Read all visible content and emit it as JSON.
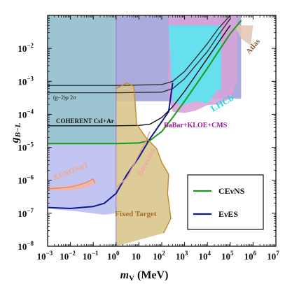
{
  "chart_data": {
    "type": "line",
    "xlabel": "m",
    "xlabel_sub": "V",
    "xlabel_unit": " (MeV)",
    "ylabel": "g",
    "ylabel_sub": "B−L",
    "x_scale": "log",
    "y_scale": "log",
    "xlim": [
      0.001,
      10000000
    ],
    "ylim": [
      1e-08,
      0.1
    ],
    "x_ticks": [
      {
        "value": 0.001,
        "label": "10",
        "exp": "−3"
      },
      {
        "value": 0.01,
        "label": "10",
        "exp": "−2"
      },
      {
        "value": 0.1,
        "label": "10",
        "exp": "−1"
      },
      {
        "value": 1,
        "label": "10",
        "exp": "0"
      },
      {
        "value": 10,
        "label": "10",
        "exp": ""
      },
      {
        "value": 100,
        "label": "10",
        "exp": "2"
      },
      {
        "value": 1000,
        "label": "10",
        "exp": "3"
      },
      {
        "value": 10000,
        "label": "10",
        "exp": "4"
      },
      {
        "value": 100000,
        "label": "10",
        "exp": "5"
      },
      {
        "value": 1000000,
        "label": "10",
        "exp": "6"
      },
      {
        "value": 10000000,
        "label": "10",
        "exp": "7"
      }
    ],
    "y_ticks": [
      {
        "value": 0.01,
        "label": "10",
        "exp": "−2"
      },
      {
        "value": 0.001,
        "label": "10",
        "exp": "−3"
      },
      {
        "value": 0.0001,
        "label": "10",
        "exp": "−4"
      },
      {
        "value": 1e-05,
        "label": "10",
        "exp": "−5"
      },
      {
        "value": 1e-06,
        "label": "10",
        "exp": "−6"
      },
      {
        "value": 1e-07,
        "label": "10",
        "exp": "−7"
      },
      {
        "value": 1e-08,
        "label": "10",
        "exp": "−8"
      }
    ],
    "regions": [
      {
        "name": "beam-dump",
        "color": "#8fbccc",
        "points": [
          [
            0.001,
            0.1
          ],
          [
            1,
            0.1
          ],
          [
            1,
            1.2e-05
          ],
          [
            0.1,
            1.2e-05
          ],
          [
            0.01,
            1.2e-05
          ],
          [
            0.001,
            1.2e-05
          ]
        ]
      },
      {
        "name": "low-mass",
        "color": "#b9bcf0",
        "points": [
          [
            0.001,
            1.2e-05
          ],
          [
            1,
            1.2e-05
          ],
          [
            1,
            1e-07
          ],
          [
            0.3,
            9e-08
          ],
          [
            0.03,
            1.1e-07
          ],
          [
            0.001,
            1.4e-07
          ]
        ]
      },
      {
        "name": "collider-band",
        "color": "#9f9ed8",
        "points": [
          [
            1,
            0.1
          ],
          [
            300000,
            0.1
          ],
          [
            300000,
            0.0003
          ],
          [
            1000,
            0.0003
          ],
          [
            200,
            0.00025
          ],
          [
            1,
            0.00025
          ]
        ]
      },
      {
        "name": "fixed-target",
        "color": "#d8c48a",
        "points": [
          [
            1,
            0.0006
          ],
          [
            3,
            0.0009
          ],
          [
            6,
            0.0007
          ],
          [
            8,
            5e-05
          ],
          [
            20,
            2e-05
          ],
          [
            60,
            9e-06
          ],
          [
            100,
            3.5e-06
          ],
          [
            200,
            1.5e-06
          ],
          [
            180,
            4e-07
          ],
          [
            250,
            7e-08
          ],
          [
            120,
            2.5e-08
          ],
          [
            1,
            1e-08
          ]
        ]
      },
      {
        "name": "babar-kloe-cms",
        "color": "#d7a3d8",
        "points": [
          [
            200,
            0.0003
          ],
          [
            300,
            0.00012
          ],
          [
            1000,
            0.00011
          ],
          [
            3000,
            0.00013
          ],
          [
            10000,
            0.00019
          ],
          [
            30000,
            0.0002
          ],
          [
            100000,
            0.0003
          ],
          [
            200000,
            0.001
          ],
          [
            200000,
            0.1
          ],
          [
            200,
            0.1
          ]
        ]
      },
      {
        "name": "lhcb",
        "color": "#5ae6f0",
        "points": [
          [
            200,
            0.05
          ],
          [
            300,
            0.00025
          ],
          [
            600,
            0.0002
          ],
          [
            1000,
            0.0002
          ],
          [
            3000,
            0.00025
          ],
          [
            10000,
            0.00022
          ],
          [
            15000,
            0.0003
          ],
          [
            30000,
            0.0006
          ],
          [
            40000,
            0.0005
          ],
          [
            40000,
            0.05
          ]
        ]
      },
      {
        "name": "atlas",
        "color": "#e2c6b4",
        "points": [
          [
            150000,
            0.05
          ],
          [
            300000,
            0.02
          ],
          [
            800000,
            0.012
          ],
          [
            1000000,
            0.05
          ]
        ]
      },
      {
        "name": "xenonnt",
        "color": "#f6b59b",
        "points": [
          [
            0.001,
            6e-07
          ],
          [
            0.01,
            7e-07
          ],
          [
            0.05,
            9e-07
          ],
          [
            0.1,
            1.1e-06
          ],
          [
            0.12,
            8e-07
          ],
          [
            0.05,
            6e-07
          ],
          [
            0.01,
            5e-07
          ],
          [
            0.001,
            5e-07
          ]
        ]
      }
    ],
    "curves": [
      {
        "name": "CEνNS",
        "color": "#1a9a1a",
        "points": [
          [
            0.001,
            1.3e-05
          ],
          [
            1,
            1.3e-05
          ],
          [
            10,
            1.35e-05
          ],
          [
            30,
            1.6e-05
          ],
          [
            100,
            3e-05
          ],
          [
            300,
            8e-05
          ],
          [
            1000,
            0.00025
          ],
          [
            3000,
            0.00075
          ],
          [
            10000,
            0.0025
          ],
          [
            30000,
            0.008
          ],
          [
            100000,
            0.028
          ],
          [
            300000,
            0.07
          ]
        ]
      },
      {
        "name": "EνES",
        "color": "#101890",
        "points": [
          [
            0.001,
            1.5e-07
          ],
          [
            0.01,
            1.4e-07
          ],
          [
            0.1,
            1.6e-07
          ],
          [
            0.3,
            2e-07
          ],
          [
            1,
            4e-07
          ],
          [
            3,
            1.5e-06
          ],
          [
            10,
            5e-06
          ],
          [
            30,
            1.8e-05
          ],
          [
            100,
            6e-05
          ],
          [
            200,
            0.00012
          ],
          [
            300,
            0.0009
          ]
        ]
      },
      {
        "name": "(g−2)μ 2σ",
        "color": "#2a2a2a",
        "points": [
          [
            0.001,
            0.00045
          ],
          [
            1,
            0.00045
          ],
          [
            100,
            0.00047
          ],
          [
            300,
            0.0006
          ],
          [
            1000,
            0.0012
          ],
          [
            3000,
            0.003
          ],
          [
            10000,
            0.008
          ],
          [
            30000,
            0.025
          ],
          [
            100000,
            0.08
          ]
        ]
      },
      {
        "name": "(g−2)μ 2σ upper",
        "color": "#2a2a2a",
        "points": [
          [
            0.001,
            0.00075
          ],
          [
            1,
            0.00075
          ],
          [
            100,
            0.0008
          ],
          [
            300,
            0.001
          ],
          [
            1000,
            0.002
          ],
          [
            3000,
            0.005
          ],
          [
            10000,
            0.014
          ],
          [
            30000,
            0.04
          ],
          [
            100000,
            0.1
          ]
        ]
      },
      {
        "name": "COHERENT CsI+Ar",
        "color": "#111111",
        "points": [
          [
            0.001,
            4.5e-05
          ],
          [
            1,
            4.5e-05
          ],
          [
            10,
            4.6e-05
          ],
          [
            30,
            5e-05
          ],
          [
            100,
            8e-05
          ],
          [
            300,
            0.00017
          ],
          [
            1000,
            0.0005
          ],
          [
            3000,
            0.0015
          ],
          [
            10000,
            0.005
          ],
          [
            30000,
            0.015
          ],
          [
            100000,
            0.05
          ]
        ]
      },
      {
        "name": "XENONnT curve",
        "color": "#e4886a",
        "points": [
          [
            0.001,
            5.5e-07
          ],
          [
            0.01,
            6.2e-07
          ],
          [
            0.05,
            8.5e-07
          ],
          [
            0.1,
            1.1e-06
          ],
          [
            0.12,
            8e-07
          ]
        ]
      },
      {
        "name": "Borexino",
        "color": "#e49a9a",
        "points": [
          [
            1,
            6e-07
          ],
          [
            3,
            1.2e-06
          ],
          [
            10,
            6e-06
          ],
          [
            20,
            1.5e-05
          ],
          [
            30,
            3e-05
          ]
        ]
      },
      {
        "name": "fixed-target edge",
        "color": "#c08a30",
        "points": [
          [
            1,
            0.0006
          ],
          [
            3,
            0.0009
          ],
          [
            6,
            0.0007
          ],
          [
            8,
            5e-05
          ],
          [
            20,
            2e-05
          ],
          [
            60,
            9e-06
          ],
          [
            100,
            3.5e-06
          ],
          [
            200,
            1.5e-06
          ],
          [
            180,
            4e-07
          ],
          [
            250,
            7e-08
          ],
          [
            120,
            2.5e-08
          ]
        ]
      }
    ],
    "annotations": {
      "gm2": "(g−2)μ 2σ",
      "coherent": "COHERENT CsI+Ar",
      "babar": "BaBar+KLOE+CMS",
      "lhcb": "LHCb",
      "atlas": "Atlas",
      "xenon": "XENONnT",
      "borexino": "Borexino",
      "fixed_target": "Fixed Target"
    },
    "legend": [
      {
        "label": "CEνNS",
        "color": "#1a9a1a"
      },
      {
        "label": "EνES",
        "color": "#101890"
      }
    ],
    "legend_position": "lower-right",
    "grid": false
  }
}
